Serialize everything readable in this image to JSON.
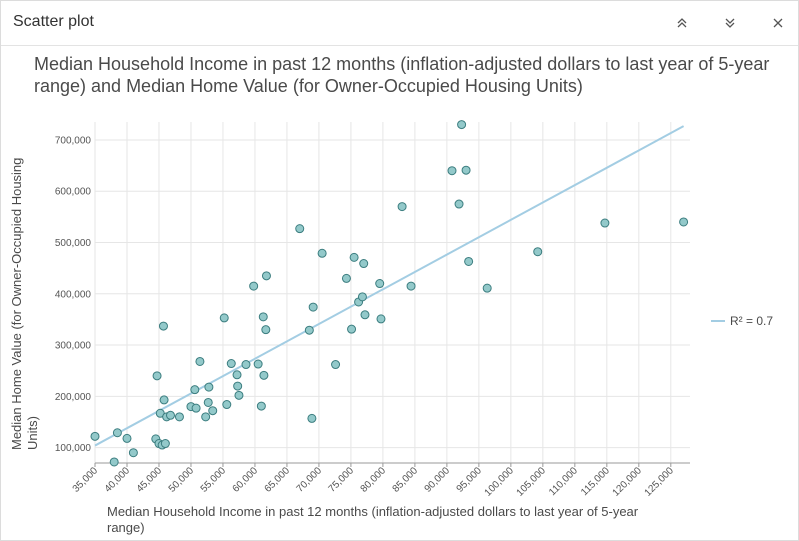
{
  "header": {
    "title": "Scatter plot"
  },
  "chart_data": {
    "type": "scatter",
    "title": "Median Household Income in past 12 months (inflation-adjusted dollars to last year of 5-year range) and Median Home Value (for Owner-Occupied Housing Units)",
    "xlabel_lines": [
      "Median Household Income in past 12 months (inflation-adjusted dollars to last year of 5-year",
      "range)"
    ],
    "ylabel_lines": [
      "Median Home Value (for Owner-Occupied Housing",
      "Units)"
    ],
    "xlim": [
      35000,
      128000
    ],
    "ylim": [
      70000,
      735000
    ],
    "x_ticks": [
      35000,
      40000,
      45000,
      50000,
      55000,
      60000,
      65000,
      70000,
      75000,
      80000,
      85000,
      90000,
      95000,
      100000,
      105000,
      110000,
      115000,
      120000,
      125000
    ],
    "x_tick_labels": [
      "35,000",
      "40,000",
      "45,000",
      "50,000",
      "55,000",
      "60,000",
      "65,000",
      "70,000",
      "75,000",
      "80,000",
      "85,000",
      "90,000",
      "95,000",
      "100,000",
      "105,000",
      "110,000",
      "115,000",
      "120,000",
      "125,000"
    ],
    "y_ticks": [
      100000,
      200000,
      300000,
      400000,
      500000,
      600000,
      700000
    ],
    "y_tick_labels": [
      "100,000",
      "200,000",
      "300,000",
      "400,000",
      "500,000",
      "600,000",
      "700,000"
    ],
    "points": [
      [
        35000,
        122000
      ],
      [
        38000,
        72000
      ],
      [
        38500,
        129000
      ],
      [
        40000,
        118000
      ],
      [
        41000,
        90000
      ],
      [
        44500,
        117000
      ],
      [
        44700,
        240000
      ],
      [
        45000,
        108000
      ],
      [
        45200,
        167000
      ],
      [
        45500,
        105000
      ],
      [
        45700,
        337000
      ],
      [
        45800,
        193000
      ],
      [
        46000,
        108000
      ],
      [
        46200,
        160000
      ],
      [
        46800,
        163000
      ],
      [
        48200,
        160000
      ],
      [
        50000,
        180000
      ],
      [
        50600,
        213000
      ],
      [
        50800,
        177000
      ],
      [
        51400,
        268000
      ],
      [
        52300,
        160000
      ],
      [
        52700,
        188000
      ],
      [
        52800,
        218000
      ],
      [
        53400,
        172000
      ],
      [
        55200,
        353000
      ],
      [
        55600,
        184000
      ],
      [
        56300,
        264000
      ],
      [
        57200,
        242000
      ],
      [
        57300,
        220000
      ],
      [
        57500,
        202000
      ],
      [
        58600,
        262000
      ],
      [
        59800,
        415000
      ],
      [
        60500,
        263000
      ],
      [
        61000,
        181000
      ],
      [
        61300,
        355000
      ],
      [
        61400,
        241000
      ],
      [
        61700,
        330000
      ],
      [
        61800,
        435000
      ],
      [
        67000,
        527000
      ],
      [
        68500,
        329000
      ],
      [
        68900,
        157000
      ],
      [
        69100,
        374000
      ],
      [
        70500,
        479000
      ],
      [
        72600,
        262000
      ],
      [
        74300,
        430000
      ],
      [
        75100,
        331000
      ],
      [
        75500,
        471000
      ],
      [
        76200,
        384000
      ],
      [
        76800,
        394000
      ],
      [
        77000,
        459000
      ],
      [
        77200,
        359000
      ],
      [
        79500,
        420000
      ],
      [
        79700,
        351000
      ],
      [
        83000,
        570000
      ],
      [
        84400,
        415000
      ],
      [
        90800,
        640000
      ],
      [
        91900,
        575000
      ],
      [
        92300,
        730000
      ],
      [
        93000,
        641000
      ],
      [
        93400,
        463000
      ],
      [
        96300,
        411000
      ],
      [
        104200,
        482000
      ],
      [
        114700,
        538000
      ],
      [
        127000,
        540000
      ]
    ],
    "trendline": {
      "x": [
        35000,
        127000
      ],
      "y": [
        104000,
        727000
      ]
    },
    "legend": {
      "label": "R² = 0.7",
      "position": "right"
    },
    "grid": true
  },
  "colors": {
    "point_fill": "#93c9ca",
    "point_stroke": "#3b7d7f",
    "trendline": "#a3cde3",
    "grid": "#e6e6e6",
    "axis": "#9a9a9a"
  },
  "icons": {
    "collapse": "chevrons-up-icon",
    "expand": "chevrons-down-icon",
    "close": "close-icon"
  }
}
